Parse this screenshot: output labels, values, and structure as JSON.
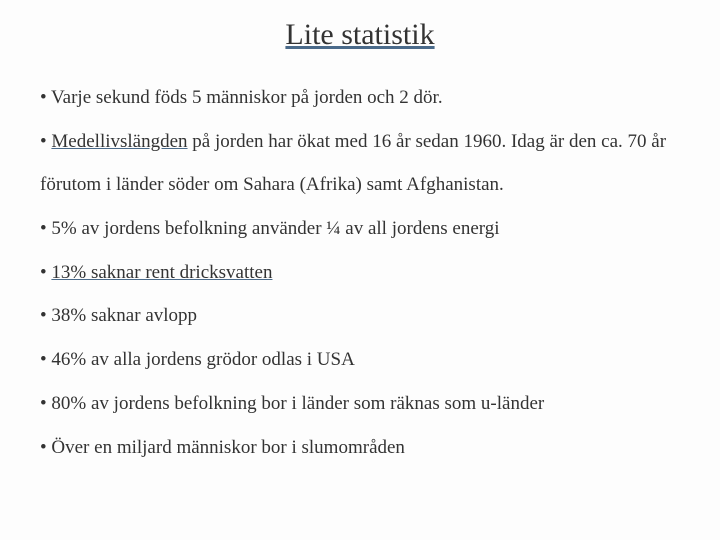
{
  "title": "Lite statistik",
  "colors": {
    "background": "#fdfdfd",
    "text": "#333333",
    "underline": "#4a6a8a"
  },
  "typography": {
    "title_fontsize": 30,
    "body_fontsize": 19,
    "font_family": "Garamond, Georgia, serif",
    "line_height": 2.3
  },
  "bullets": [
    {
      "pre": "• Varje sekund föds 5 människor på jorden och 2 dör.",
      "underlined": "",
      "post": ""
    },
    {
      "pre": "• ",
      "underlined": "Medellivslängden",
      "post": " på jorden har ökat med 16 år sedan 1960. Idag är den ca. 70 år förutom i länder söder om Sahara (Afrika) samt Afghanistan."
    },
    {
      "pre": "•  5% av jordens befolkning använder ¼ av all jordens energi",
      "underlined": "",
      "post": ""
    },
    {
      "pre": "• ",
      "underlined": "13% saknar rent dricksvatten",
      "post": ""
    },
    {
      "pre": "• 38% saknar avlopp",
      "underlined": "",
      "post": ""
    },
    {
      "pre": "• 46% av alla jordens grödor odlas i USA",
      "underlined": "",
      "post": ""
    },
    {
      "pre": "• 80% av jordens befolkning bor i länder som räknas som u-länder",
      "underlined": "",
      "post": ""
    },
    {
      "pre": "• Över en miljard människor bor i slumområden",
      "underlined": "",
      "post": ""
    }
  ]
}
